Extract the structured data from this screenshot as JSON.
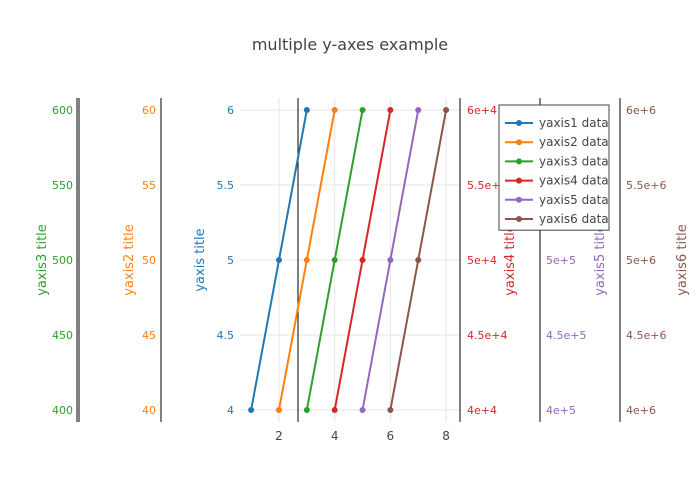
{
  "chart_data": {
    "type": "line",
    "title": "multiple y-axes example",
    "x_axis": {
      "range": [
        0.6,
        8.5
      ],
      "ticks": [
        2,
        4,
        6,
        8
      ],
      "grid": true
    },
    "axes": {
      "y1": {
        "title": "yaxis title",
        "color": "#1f77b4",
        "range": [
          3.92,
          6.08
        ],
        "ticks": [
          4,
          4.5,
          5,
          5.5,
          6
        ],
        "tick_labels": [
          "4",
          "4.5",
          "5",
          "5.5",
          "6"
        ],
        "side": "left"
      },
      "y2": {
        "title": "yaxis2 title",
        "color": "#ff7f0e",
        "range": [
          39.2,
          60.8
        ],
        "ticks": [
          40,
          45,
          50,
          55,
          60
        ],
        "tick_labels": [
          "40",
          "45",
          "50",
          "55",
          "60"
        ],
        "side": "left"
      },
      "y3": {
        "title": "yaxis3 title",
        "color": "#2ca02c",
        "range": [
          392,
          608
        ],
        "ticks": [
          400,
          450,
          500,
          550,
          600
        ],
        "tick_labels": [
          "400",
          "450",
          "500",
          "550",
          "600"
        ],
        "side": "left"
      },
      "y4": {
        "title": "yaxis4 title",
        "color": "#d62728",
        "range": [
          39200,
          60800
        ],
        "ticks": [
          40000,
          45000,
          50000,
          55000,
          60000
        ],
        "tick_labels": [
          "4e+4",
          "4.5e+4",
          "5e+4",
          "5.5e+4",
          "6e+4"
        ],
        "side": "right"
      },
      "y5": {
        "title": "yaxis5 title",
        "color": "#9467bd",
        "range": [
          392000,
          608000
        ],
        "ticks": [
          400000,
          450000,
          500000
        ],
        "tick_labels": [
          "4e+5",
          "4.5e+5",
          "5e+5"
        ],
        "side": "right"
      },
      "y6": {
        "title": "yaxis6 title",
        "color": "#8c564b",
        "range": [
          3920000,
          6080000
        ],
        "ticks": [
          4000000,
          4500000,
          5000000,
          5500000,
          6000000
        ],
        "tick_labels": [
          "4e+6",
          "4.5e+6",
          "5e+6",
          "5.5e+6",
          "6e+6"
        ],
        "side": "right"
      }
    },
    "series": [
      {
        "name": "yaxis1 data",
        "axis": "y1",
        "x": [
          1,
          2,
          3
        ],
        "y": [
          4,
          5,
          6
        ],
        "color": "#1f77b4"
      },
      {
        "name": "yaxis2 data",
        "axis": "y2",
        "x": [
          2,
          3,
          4
        ],
        "y": [
          40,
          50,
          60
        ],
        "color": "#ff7f0e"
      },
      {
        "name": "yaxis3 data",
        "axis": "y3",
        "x": [
          3,
          4,
          5
        ],
        "y": [
          400,
          500,
          600
        ],
        "color": "#2ca02c"
      },
      {
        "name": "yaxis4 data",
        "axis": "y4",
        "x": [
          4,
          5,
          6
        ],
        "y": [
          40000,
          50000,
          60000
        ],
        "color": "#d62728"
      },
      {
        "name": "yaxis5 data",
        "axis": "y5",
        "x": [
          5,
          6,
          7
        ],
        "y": [
          400000,
          500000,
          600000
        ],
        "color": "#9467bd"
      },
      {
        "name": "yaxis6 data",
        "axis": "y6",
        "x": [
          6,
          7,
          8
        ],
        "y": [
          4000000,
          5000000,
          6000000
        ],
        "color": "#8c564b"
      }
    ],
    "legend": {
      "position": "top-right"
    }
  }
}
